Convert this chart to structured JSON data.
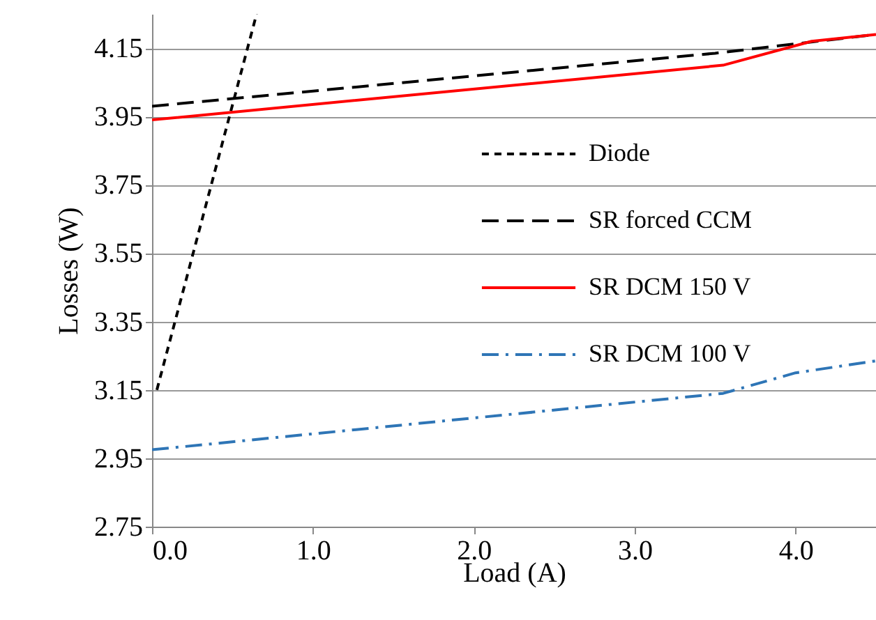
{
  "chart_data": {
    "type": "line",
    "xlabel": "Load (A)",
    "ylabel": "Losses (W)",
    "xlim": [
      0,
      4.5
    ],
    "ylim": [
      2.75,
      4.25
    ],
    "xticks": [
      {
        "value": 0,
        "label": "0.0"
      },
      {
        "value": 1,
        "label": "1.0"
      },
      {
        "value": 2,
        "label": "2.0"
      },
      {
        "value": 3,
        "label": "3.0"
      },
      {
        "value": 4,
        "label": "4.0"
      }
    ],
    "yticks": [
      2.75,
      2.95,
      3.15,
      3.35,
      3.55,
      3.75,
      3.95,
      4.15
    ],
    "grid": "y",
    "legend": "right",
    "marker": "none",
    "series": [
      {
        "name": "Diode",
        "color": "#000000",
        "line_style": "dotted",
        "x": [
          0.03,
          0.65
        ],
        "values": [
          3.15,
          4.25
        ]
      },
      {
        "name": "SR forced CCM",
        "color": "#000000",
        "line_style": "dashed",
        "x": [
          0,
          3.5,
          4.5
        ],
        "values": [
          3.98,
          4.135,
          4.19
        ]
      },
      {
        "name": "SR DCM 150 V",
        "color": "#ff0000",
        "line_style": "solid",
        "x": [
          0,
          3.55,
          4.1,
          4.5
        ],
        "values": [
          3.94,
          4.1,
          4.17,
          4.19
        ]
      },
      {
        "name": "SR DCM 100 V",
        "color": "#2e75b6",
        "line_style": "dashdot",
        "x": [
          0,
          3.55,
          4.0,
          4.5
        ],
        "values": [
          2.975,
          3.14,
          3.2,
          3.235
        ]
      }
    ]
  }
}
